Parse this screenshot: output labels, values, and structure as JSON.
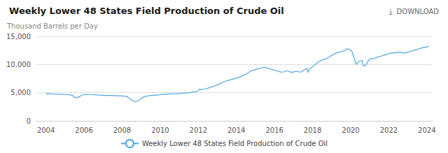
{
  "chart_data": {
    "type": "line",
    "title": "Weekly Lower 48 States Field Production of Crude Oil",
    "y_label": "Thousand Barrels per Day",
    "annotations": [
      "⤓  DOWNLOAD"
    ],
    "x": [
      2004.0,
      2004.1,
      2004.2,
      2004.4,
      2004.6,
      2004.8,
      2005.0,
      2005.2,
      2005.4,
      2005.5,
      2005.6,
      2005.7,
      2005.8,
      2005.85,
      2005.9,
      2006.0,
      2006.2,
      2006.3,
      2006.5,
      2006.7,
      2006.8,
      2007.0,
      2007.2,
      2007.4,
      2007.6,
      2007.8,
      2008.0,
      2008.1,
      2008.2,
      2008.3,
      2008.5,
      2008.6,
      2008.7,
      2008.8,
      2008.9,
      2009.0,
      2009.1,
      2009.2,
      2009.3,
      2009.4,
      2009.5,
      2009.7,
      2009.9,
      2010.0,
      2010.2,
      2010.4,
      2010.6,
      2010.8,
      2011.0,
      2011.2,
      2011.4,
      2011.5,
      2011.6,
      2011.7,
      2011.8,
      2011.9,
      2012.0,
      2012.05,
      2012.1,
      2012.15,
      2012.2,
      2012.4,
      2012.6,
      2012.8,
      2013.0,
      2013.2,
      2013.4,
      2013.6,
      2013.8,
      2014.0,
      2014.2,
      2014.4,
      2014.5,
      2014.6,
      2014.7,
      2014.8,
      2015.0,
      2015.2,
      2015.4,
      2015.5,
      2015.6,
      2015.7,
      2015.8,
      2015.9,
      2016.0,
      2016.1,
      2016.2,
      2016.3,
      2016.4,
      2016.5,
      2016.6,
      2016.7,
      2016.8,
      2016.9,
      2017.0,
      2017.1,
      2017.2,
      2017.3,
      2017.4,
      2017.5,
      2017.6,
      2017.7,
      2017.75,
      2017.8,
      2017.9,
      2018.0,
      2018.1,
      2018.2,
      2018.3,
      2018.4,
      2018.5,
      2018.6,
      2018.7,
      2018.8,
      2018.9,
      2019.0,
      2019.1,
      2019.2,
      2019.3,
      2019.4,
      2019.5,
      2019.6,
      2019.7,
      2019.75,
      2019.8,
      2019.9,
      2020.0,
      2020.05,
      2020.1,
      2020.15,
      2020.2,
      2020.25,
      2020.3,
      2020.35,
      2020.4,
      2020.5,
      2020.6,
      2020.65,
      2020.7,
      2020.75,
      2020.8,
      2020.9,
      2021.0,
      2021.1,
      2021.2,
      2021.3,
      2021.4,
      2021.5,
      2021.6,
      2021.7,
      2021.8,
      2021.9,
      2022.0,
      2022.1,
      2022.2,
      2022.3,
      2022.4,
      2022.5,
      2022.6,
      2022.7,
      2022.8,
      2022.9,
      2023.0,
      2023.1,
      2023.2,
      2023.3,
      2023.4,
      2023.5,
      2023.6,
      2023.7,
      2023.8,
      2023.9,
      2024.0,
      2024.1
    ],
    "series": [
      {
        "name": "Weekly Lower 48 States Field Production of Crude Oil",
        "color": "#4da6e0",
        "values": [
          4800,
          4820,
          4790,
          4750,
          4720,
          4700,
          4680,
          4650,
          4500,
          4200,
          4100,
          4200,
          4350,
          4500,
          4600,
          4650,
          4700,
          4680,
          4650,
          4600,
          4580,
          4550,
          4520,
          4500,
          4480,
          4450,
          4420,
          4400,
          4380,
          4200,
          3700,
          3500,
          3450,
          3500,
          3700,
          4000,
          4200,
          4350,
          4400,
          4450,
          4500,
          4550,
          4600,
          4650,
          4700,
          4750,
          4800,
          4820,
          4850,
          4900,
          4950,
          5000,
          5050,
          5100,
          5150,
          5200,
          5300,
          5600,
          5650,
          5500,
          5550,
          5700,
          5900,
          6100,
          6400,
          6700,
          7000,
          7200,
          7400,
          7600,
          7800,
          8100,
          8300,
          8500,
          8700,
          8900,
          9100,
          9300,
          9450,
          9500,
          9400,
          9300,
          9200,
          9100,
          9000,
          8900,
          8800,
          8700,
          8650,
          8700,
          8800,
          8900,
          8700,
          8600,
          8700,
          8750,
          8800,
          8650,
          8700,
          8900,
          9100,
          9300,
          8600,
          9000,
          9400,
          9600,
          9900,
          10200,
          10500,
          10600,
          10800,
          10900,
          11000,
          11200,
          11400,
          11600,
          11800,
          12000,
          12100,
          12200,
          12300,
          12400,
          12500,
          12700,
          12800,
          12700,
          12600,
          12400,
          12000,
          11500,
          11000,
          10400,
          10000,
          10200,
          10500,
          10600,
          10700,
          9900,
          9800,
          9700,
          10000,
          10500,
          11000,
          11100,
          11000,
          11200,
          11300,
          11400,
          11500,
          11600,
          11700,
          11800,
          11900,
          12000,
          12100,
          12000,
          12100,
          12200,
          12200,
          12100,
          12000,
          12100,
          12200,
          12300,
          12400,
          12500,
          12600,
          12700,
          12800,
          12900,
          13000,
          13100,
          13100,
          13200
        ]
      }
    ],
    "xlim": [
      2003.5,
      2024.3
    ],
    "xticks": [
      2004,
      2006,
      2008,
      2010,
      2012,
      2014,
      2016,
      2018,
      2020,
      2022,
      2024
    ],
    "ylim": [
      0,
      15000
    ],
    "yticks": [
      0,
      {
        "value": 5000,
        "label": "5,000"
      },
      {
        "value": 10000,
        "label": "10,000"
      },
      {
        "value": 15000,
        "label": "15,000"
      }
    ],
    "grid": true,
    "legend": "bottom"
  }
}
